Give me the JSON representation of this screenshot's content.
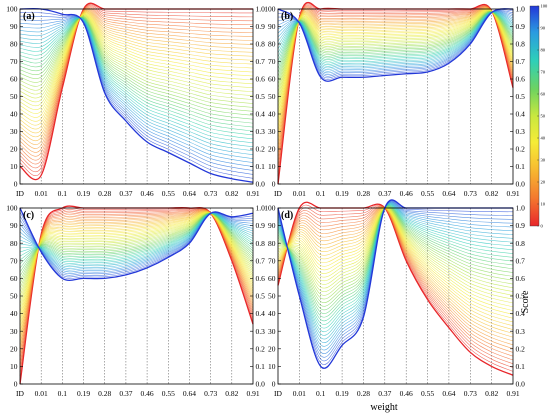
{
  "chart_data": {
    "type": "line",
    "x_categories": [
      "ID",
      "0.01",
      "0.1",
      "0.19",
      "0.28",
      "0.37",
      "0.46",
      "0.55",
      "0.64",
      "0.73",
      "0.82",
      "0.91"
    ],
    "xlabel": "weight",
    "left_yticks": [
      "0",
      "10",
      "20",
      "30",
      "40",
      "50",
      "60",
      "70",
      "80",
      "90",
      "100"
    ],
    "right_yticks": [
      "0.0",
      "0.1",
      "0.2",
      "0.3",
      "0.4",
      "0.5",
      "0.6",
      "0.7",
      "0.8",
      "0.9",
      "1.0"
    ],
    "ylim_left": [
      0,
      100
    ],
    "ylim_right": [
      0.0,
      1.0
    ],
    "colorbar": {
      "label": "Score",
      "ticks": [
        "0",
        "10",
        "20",
        "30",
        "40",
        "50",
        "60",
        "70",
        "80",
        "90",
        "100"
      ],
      "range": [
        0,
        100
      ],
      "colors_low_to_high": [
        "#e8262a",
        "#f47a2f",
        "#f7c031",
        "#f6ec36",
        "#c9e83f",
        "#6fd35f",
        "#2fd0b8",
        "#2a9be0",
        "#2338d8"
      ]
    },
    "series_count_per_panel": 45,
    "grid": "dashed vertical lines at each weight",
    "panels": [
      {
        "label": "(a)",
        "high_score_curve": [
          100,
          100,
          97,
          92,
          52,
          36,
          24,
          18,
          12,
          6,
          3,
          1
        ],
        "low_score_curve": [
          10,
          5,
          55,
          100,
          100,
          100,
          100,
          100,
          100,
          100,
          100,
          100
        ]
      },
      {
        "label": "(b)",
        "high_score_curve": [
          100,
          92,
          61,
          61,
          61,
          62,
          63,
          64,
          69,
          80,
          98,
          100
        ],
        "low_score_curve": [
          0,
          95,
          100,
          100,
          100,
          100,
          100,
          100,
          100,
          100,
          99,
          55
        ]
      },
      {
        "label": "(c)",
        "high_score_curve": [
          100,
          75,
          60,
          60,
          60,
          62,
          66,
          72,
          80,
          97,
          95,
          97
        ],
        "low_score_curve": [
          0,
          85,
          100,
          100,
          100,
          100,
          100,
          100,
          100,
          97,
          70,
          34
        ]
      },
      {
        "label": "(d)",
        "high_score_curve": [
          100,
          50,
          10,
          22,
          38,
          100,
          100,
          100,
          100,
          100,
          100,
          100
        ],
        "low_score_curve": [
          56,
          100,
          100,
          100,
          100,
          100,
          70,
          48,
          32,
          18,
          10,
          5
        ]
      }
    ]
  }
}
